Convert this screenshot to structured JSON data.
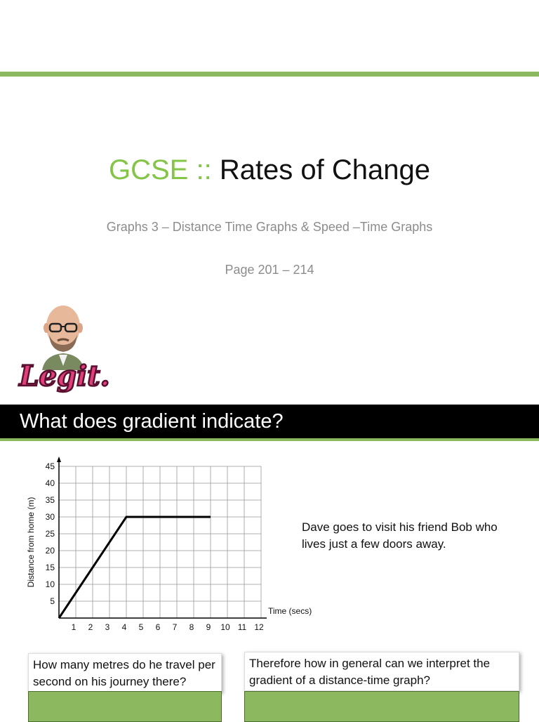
{
  "title": {
    "prefix": "GCSE ::",
    "main": "Rates of Change"
  },
  "subtitle": "Graphs 3 – Distance Time Graphs & Speed –Time Graphs",
  "pages": "Page 201 – 214",
  "logo": {
    "text": "Legit.",
    "icon": "cartoon-teacher-avatar"
  },
  "slide2": {
    "header": "What does gradient indicate?",
    "description": "Dave goes to visit his friend Bob who lives just a few doors away.",
    "question1": "How many metres do he travel per second on his journey there?",
    "question2": "Therefore how in general can we interpret the gradient of a distance-time graph?"
  },
  "chart_data": {
    "type": "line",
    "xlabel": "Time (secs)",
    "ylabel": "Distance from home (m)",
    "xlim": [
      0,
      12
    ],
    "ylim": [
      0,
      45
    ],
    "x_ticks": [
      "1",
      "2",
      "3",
      "4",
      "5",
      "6",
      "7",
      "8",
      "9",
      "10",
      "11",
      "12"
    ],
    "y_ticks": [
      "5",
      "10",
      "15",
      "20",
      "25",
      "30",
      "35",
      "40",
      "45"
    ],
    "grid": true,
    "series": [
      {
        "x": [
          0,
          4,
          9
        ],
        "y": [
          0,
          30,
          30
        ]
      }
    ]
  },
  "colors": {
    "accent": "#8cb860",
    "title_green": "#84c446",
    "header_bg": "#000000"
  }
}
